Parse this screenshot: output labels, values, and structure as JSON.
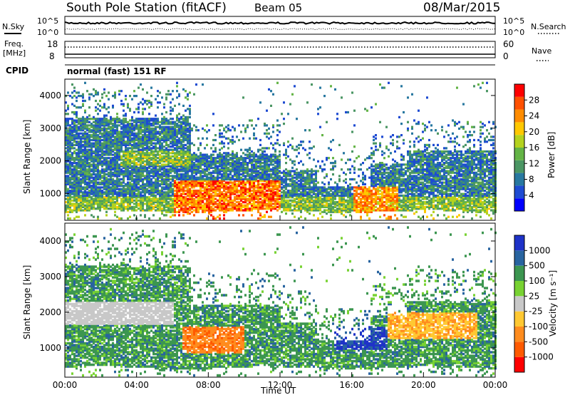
{
  "header": {
    "title": "South Pole Station (fitACF)",
    "beam": "Beam 05",
    "date": "08/Mar/2015"
  },
  "top_panels": {
    "nsky_label": "N.Sky",
    "nsky_ticks": [
      "10^5",
      "10^0"
    ],
    "nsearch_label": "N.Search",
    "freq_label_1": "Freq.",
    "freq_label_2": "[MHz]",
    "freq_ticks_left": [
      "18",
      "8"
    ],
    "freq_ticks_right": [
      "60",
      "0"
    ],
    "nave_label": "Nave",
    "cpid_label": "CPID",
    "cpid_value": "normal (fast) 151 RF"
  },
  "colors": {
    "power_scale": [
      "#0000ff",
      "#1e4bd2",
      "#2878a0",
      "#4b9664",
      "#64b446",
      "#b4d21e",
      "#ffc800",
      "#ff8c00",
      "#ff5000",
      "#ff0000"
    ],
    "velocity_scale": [
      "#ff0000",
      "#ff5a00",
      "#ff8c1e",
      "#ffc832",
      "#c8c8c8",
      "#78d232",
      "#3c9650",
      "#2864a0",
      "#1e32c8"
    ]
  },
  "chart_data": [
    {
      "type": "heatmap",
      "panel": "power",
      "ylabel": "Slant Range [km]",
      "yticks": [
        "4000",
        "3000",
        "2000",
        "1000"
      ],
      "ylim": [
        180,
        4500
      ],
      "xlim_hours": [
        0,
        24
      ],
      "colorbar_label": "Power [dB]",
      "colorbar_ticks": [
        "28",
        "24",
        "20",
        "16",
        "12",
        "8",
        "4"
      ],
      "clim": [
        0,
        30
      ]
    },
    {
      "type": "heatmap",
      "panel": "velocity",
      "ylabel": "Slant Range [km]",
      "yticks": [
        "4000",
        "3000",
        "2000",
        "1000"
      ],
      "ylim": [
        180,
        4500
      ],
      "xlim_hours": [
        0,
        24
      ],
      "xticks": [
        "00:00",
        "04:00",
        "08:00",
        "12:00",
        "16:00",
        "20:00",
        "00:00"
      ],
      "xlabel": "Time UT",
      "colorbar_label": "Velocity [m s⁻¹]",
      "colorbar_ticks": [
        "1000",
        "500",
        "100",
        "25",
        "-25",
        "-100",
        "-500",
        "-1000"
      ]
    }
  ]
}
